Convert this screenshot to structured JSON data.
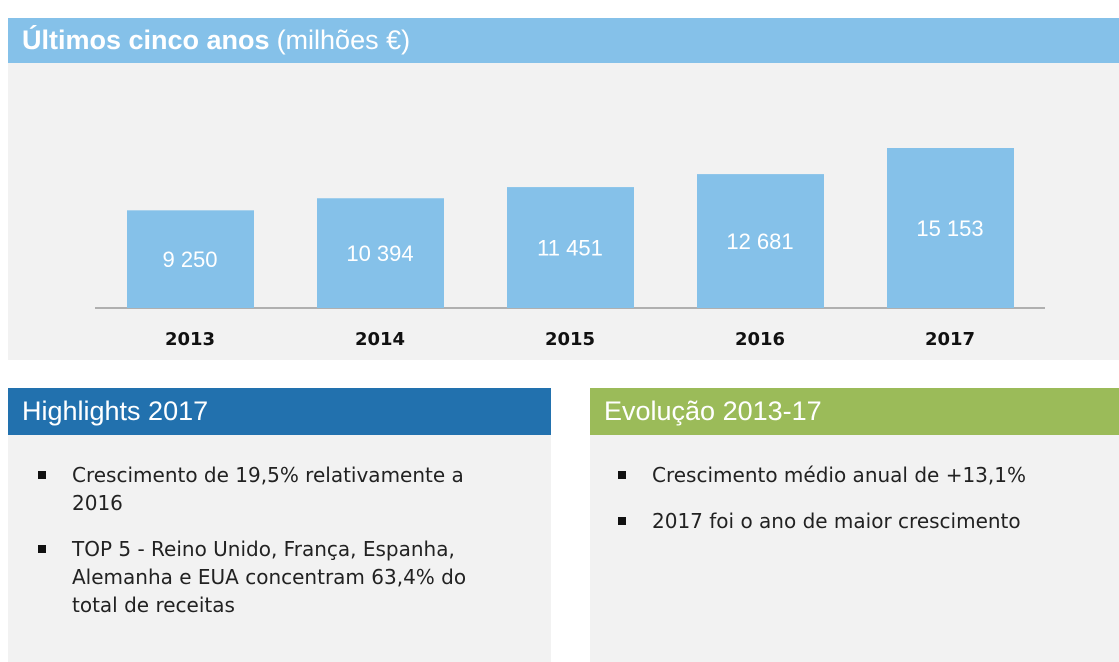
{
  "chart_data": {
    "type": "bar",
    "title": "Últimos cinco anos",
    "subtitle": "(milhões €)",
    "categories": [
      "2013",
      "2014",
      "2015",
      "2016",
      "2017"
    ],
    "values": [
      9250,
      10394,
      11451,
      12681,
      15153
    ],
    "value_labels": [
      "9 250",
      "10 394",
      "11 451",
      "12 681",
      "15 153"
    ],
    "color": "#85c1e9"
  },
  "highlights": {
    "title": "Highlights 2017",
    "items": [
      "Crescimento de 19,5% relativamente a 2016",
      "TOP 5 - Reino Unido, França, Espanha, Alemanha e EUA concentram 63,4% do total de receitas"
    ]
  },
  "evolution": {
    "title": "Evolução 2013-17",
    "items": [
      "Crescimento médio anual de +13,1%",
      "2017 foi o ano de maior crescimento"
    ]
  }
}
